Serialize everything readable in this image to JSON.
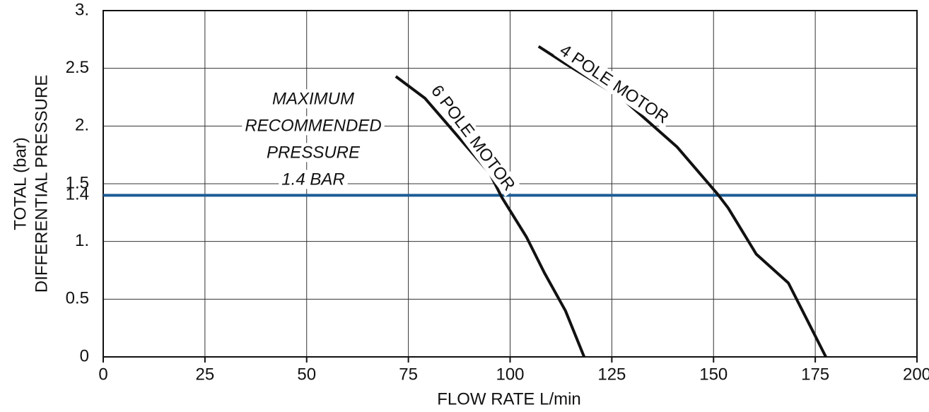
{
  "chart_data": {
    "type": "line",
    "xlabel": "FLOW RATE L/min",
    "ylabel": [
      "TOTAL (bar)",
      "DIFFERENTIAL PRESSURE"
    ],
    "annotation": [
      "MAXIMUM",
      "RECOMMENDED",
      "PRESSURE",
      "1.4 BAR"
    ],
    "xlim": [
      0,
      200
    ],
    "xticks": [
      0,
      25,
      50,
      75,
      100,
      125,
      150,
      175,
      200
    ],
    "ylim": [
      0,
      3
    ],
    "yticks": [
      0,
      0.5,
      {
        "value": 1,
        "label": "1."
      },
      1.4,
      1.5,
      {
        "value": 2,
        "label": "2."
      },
      2.5,
      {
        "value": 3,
        "label": "3."
      }
    ],
    "grid": true,
    "reference_line": {
      "value": 1.4,
      "color": "#1d5c94"
    },
    "series": [
      {
        "name": "6 POLE MOTOR",
        "color": "#111111",
        "x": [
          71.9,
          79.1,
          95,
          98,
          104,
          108.4,
          113.6,
          118.2
        ],
        "values": [
          2.43,
          2.24,
          1.59,
          1.38,
          1.04,
          0.73,
          0.4,
          0
        ]
      },
      {
        "name": "4 POLE MOTOR",
        "color": "#111111",
        "x": [
          107,
          113.6,
          127.5,
          141,
          151,
          153.6,
          160.5,
          168.4,
          177.6
        ],
        "values": [
          2.69,
          2.54,
          2.24,
          1.82,
          1.41,
          1.29,
          0.89,
          0.64,
          0
        ]
      }
    ]
  }
}
